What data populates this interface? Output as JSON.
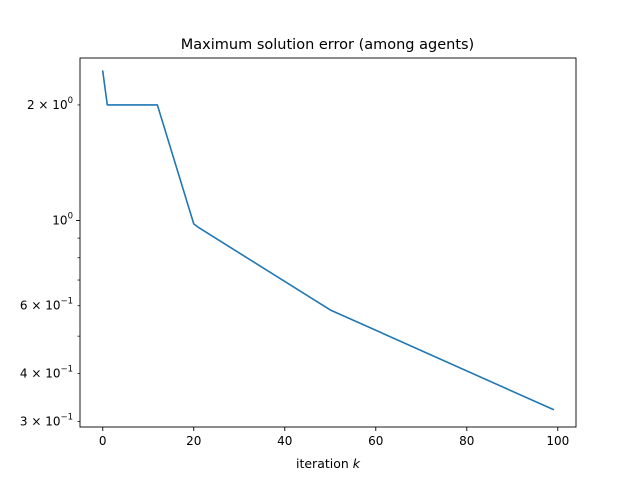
{
  "chart_data": {
    "type": "line",
    "title": "Maximum solution error (among agents)",
    "xlabel_text": "iteration ",
    "xlabel_var": "k",
    "ylabel": "",
    "y_scale": "log",
    "xlim": [
      -5,
      104
    ],
    "ylim": [
      0.29,
      2.65
    ],
    "grid": false,
    "legend": "none",
    "line_color": "#1f77b4",
    "x_ticks": [
      {
        "value": 0,
        "label": "0"
      },
      {
        "value": 20,
        "label": "20"
      },
      {
        "value": 40,
        "label": "40"
      },
      {
        "value": 60,
        "label": "60"
      },
      {
        "value": 80,
        "label": "80"
      },
      {
        "value": 100,
        "label": "100"
      }
    ],
    "y_ticks_major": [
      {
        "value": 1.0,
        "label": "10",
        "sup": "0"
      }
    ],
    "y_ticks_minor": [
      {
        "value": 2.0,
        "mantissa": "2",
        "base": "10",
        "sup": "0"
      },
      {
        "value": 0.6,
        "mantissa": "6",
        "base": "10",
        "sup": "−1"
      },
      {
        "value": 0.4,
        "mantissa": "4",
        "base": "10",
        "sup": "−1"
      },
      {
        "value": 0.3,
        "mantissa": "3",
        "base": "10",
        "sup": "−1"
      }
    ],
    "y_ticks_minor_unlabeled": [
      0.5,
      0.7,
      0.8,
      0.9
    ],
    "series": [
      {
        "x": [
          0,
          1,
          12,
          20,
          21,
          50,
          99
        ],
        "y": [
          2.45,
          2.0,
          2.0,
          0.98,
          0.96,
          0.585,
          0.322
        ]
      }
    ]
  }
}
